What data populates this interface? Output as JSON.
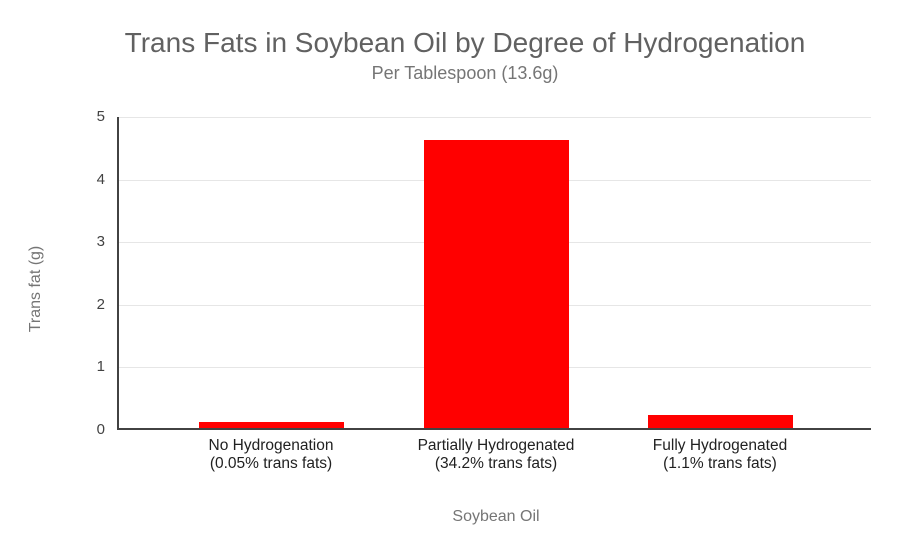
{
  "chart_data": {
    "type": "bar",
    "title": "Trans Fats in Soybean Oil by Degree of Hydrogenation",
    "subtitle": "Per Tablespoon (13.6g)",
    "xlabel": "Soybean Oil",
    "ylabel": "Trans fat (g)",
    "ylim": [
      0,
      5
    ],
    "ytick_interval": 1,
    "yticks": [
      0,
      1,
      2,
      3,
      4,
      5
    ],
    "grid": true,
    "legend_position": "none",
    "categories": [
      "No Hydrogenation",
      "Partially Hydrogenated",
      "Fully Hydrogenated"
    ],
    "category_sublabels": [
      "(0.05% trans fats)",
      "(34.2% trans fats)",
      "(1.1% trans fats)"
    ],
    "series": [
      {
        "name": "Trans fat (g)",
        "values": [
          0.1,
          4.6,
          0.2
        ]
      }
    ]
  },
  "colors": {
    "bar": "#ff0000",
    "gridline": "#e6e6e6",
    "axis_line": "#424242",
    "title_text": "#616161",
    "subtitle_text": "#757575",
    "axis_title_text": "#757575",
    "tick_text": "#424242",
    "category_text": "#212121",
    "background": "#ffffff"
  }
}
